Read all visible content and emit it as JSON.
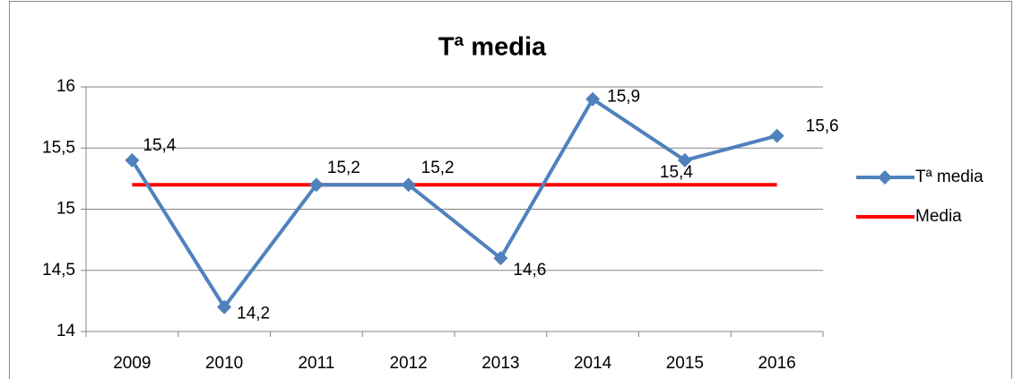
{
  "chart_data": {
    "type": "line",
    "title": "Tª media",
    "categories": [
      "2009",
      "2010",
      "2011",
      "2012",
      "2013",
      "2014",
      "2015",
      "2016"
    ],
    "series": [
      {
        "name": "Tª media",
        "color": "#4f81bd",
        "values": [
          15.4,
          14.2,
          15.2,
          15.2,
          14.6,
          15.9,
          15.4,
          15.6
        ],
        "value_labels": [
          "15,4",
          "14,2",
          "15,2",
          "15,2",
          "14,6",
          "15,9",
          "15,4",
          "15,6"
        ],
        "marker": "diamond"
      },
      {
        "name": "Media",
        "color": "#ff0000",
        "values": [
          15.2,
          15.2,
          15.2,
          15.2,
          15.2,
          15.2,
          15.2,
          15.2
        ]
      }
    ],
    "ylim": [
      14,
      16
    ],
    "yticks": [
      14,
      {
        "value": 14.5,
        "label": "14,5"
      },
      15,
      {
        "value": 15.5,
        "label": "15,5"
      },
      16
    ],
    "grid": true,
    "legend": "right"
  }
}
